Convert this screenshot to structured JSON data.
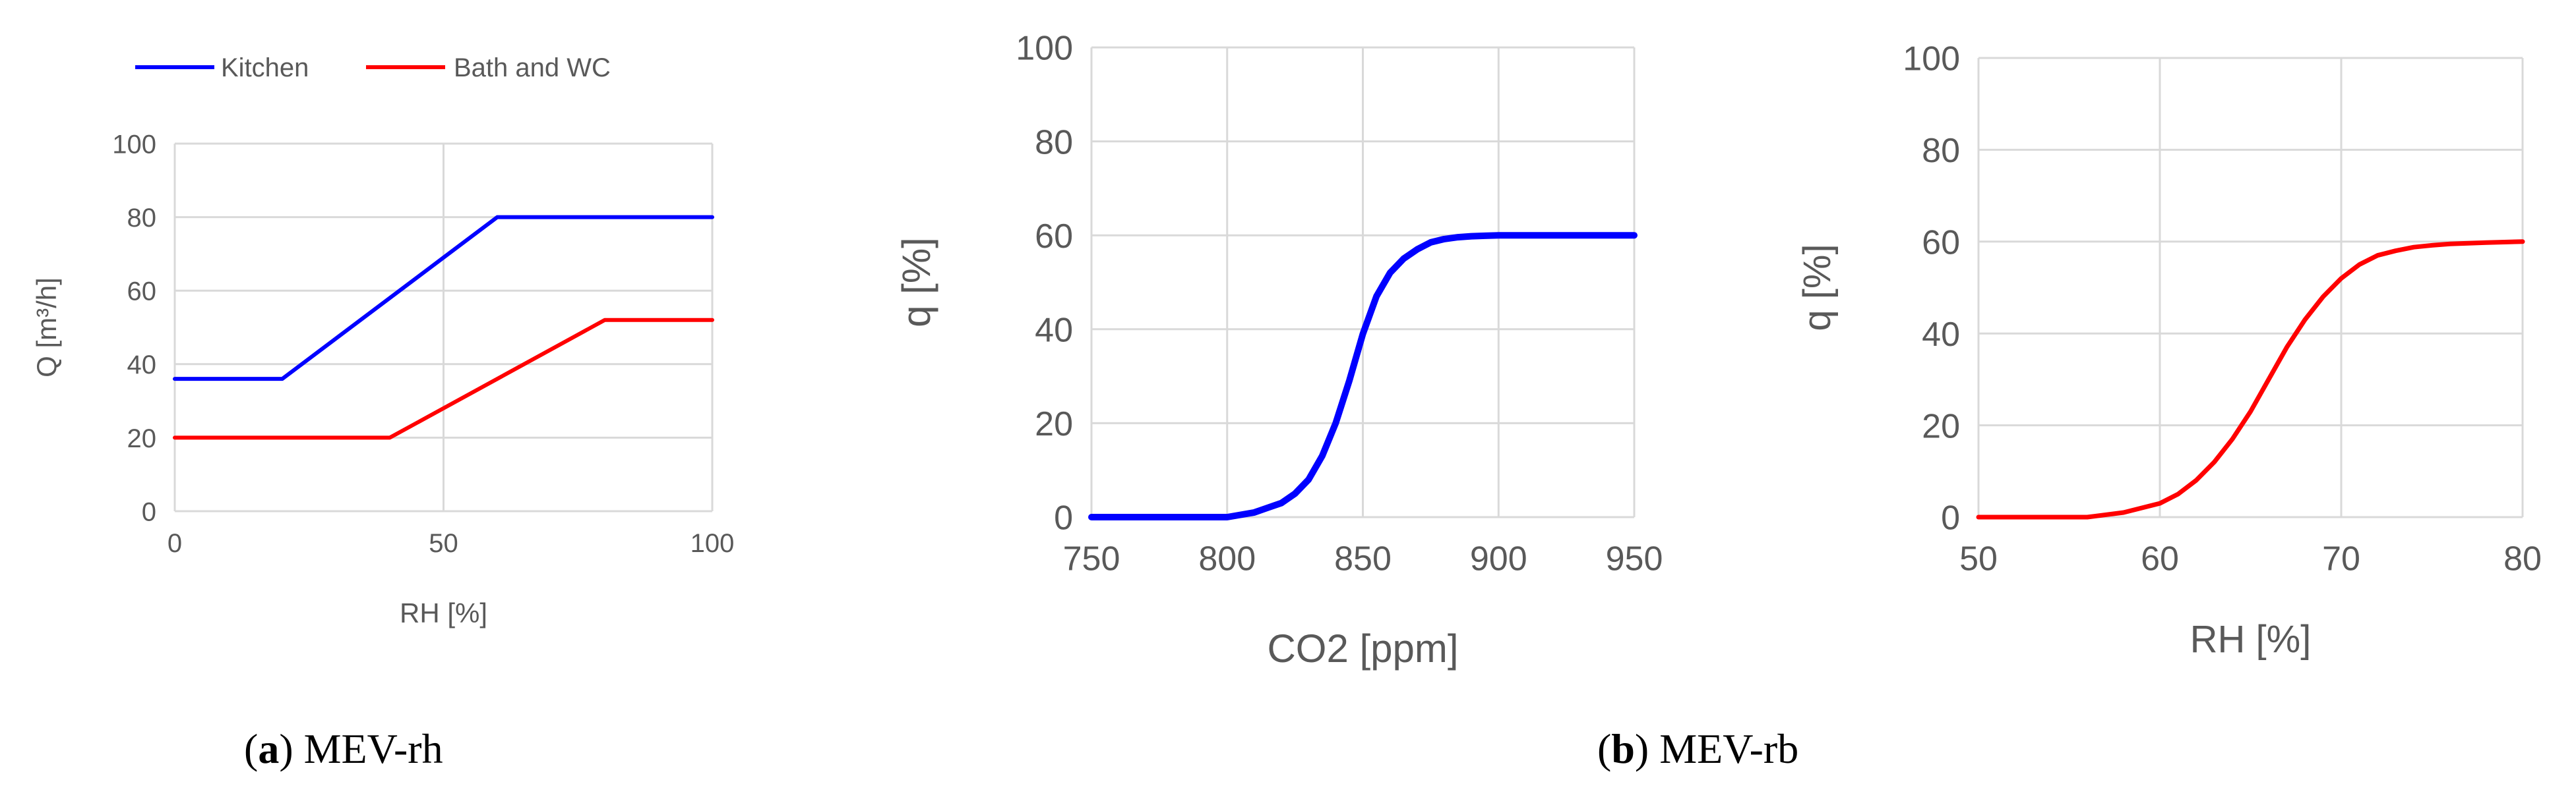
{
  "colors": {
    "kitchen": "#0000FF",
    "bath": "#FF0000",
    "grid": "#D9D9D9",
    "text": "#595959"
  },
  "chart_data": [
    {
      "type": "line",
      "xlabel": "RH [%]",
      "ylabel": "Q [m³/h]",
      "xlim": [
        0,
        100
      ],
      "ylim": [
        0,
        100
      ],
      "xticks": [
        0,
        50,
        100
      ],
      "yticks": [
        0,
        20,
        40,
        60,
        80,
        100
      ],
      "grid": true,
      "legend_position": "top",
      "series": [
        {
          "name": "Kitchen",
          "color": "#0000FF",
          "x": [
            0,
            20,
            60,
            100
          ],
          "y": [
            36,
            36,
            80,
            80
          ]
        },
        {
          "name": "Bath and WC",
          "color": "#FF0000",
          "x": [
            0,
            40,
            80,
            100
          ],
          "y": [
            20,
            20,
            52,
            52
          ]
        }
      ]
    },
    {
      "type": "line",
      "xlabel": "CO2 [ppm]",
      "ylabel": "q [%]",
      "xlim": [
        750,
        950
      ],
      "ylim": [
        0,
        100
      ],
      "xticks": [
        750,
        800,
        850,
        900,
        950
      ],
      "yticks": [
        0,
        20,
        40,
        60,
        80,
        100
      ],
      "grid": true,
      "series": [
        {
          "color": "#0000FF",
          "x": [
            750,
            800,
            810,
            815,
            820,
            825,
            830,
            835,
            840,
            845,
            850,
            855,
            860,
            865,
            870,
            875,
            880,
            885,
            890,
            895,
            900,
            910,
            950
          ],
          "y": [
            0,
            0,
            1,
            2,
            3,
            5,
            8,
            13,
            20,
            29,
            39,
            47,
            52,
            55,
            57,
            58.5,
            59.2,
            59.6,
            59.8,
            59.9,
            60,
            60,
            60
          ]
        }
      ]
    },
    {
      "type": "line",
      "xlabel": "RH [%]",
      "ylabel": "q [%]",
      "xlim": [
        50,
        80
      ],
      "ylim": [
        0,
        100
      ],
      "xticks": [
        50,
        60,
        70,
        80
      ],
      "yticks": [
        0,
        20,
        40,
        60,
        80,
        100
      ],
      "grid": true,
      "series": [
        {
          "color": "#FF0000",
          "x": [
            50,
            56,
            58,
            60,
            61,
            62,
            63,
            64,
            65,
            66,
            67,
            68,
            69,
            70,
            71,
            72,
            73,
            74,
            75,
            76,
            78,
            80
          ],
          "y": [
            0,
            0,
            1,
            3,
            5,
            8,
            12,
            17,
            23,
            30,
            37,
            43,
            48,
            52,
            55,
            57,
            58,
            58.8,
            59.2,
            59.5,
            59.8,
            60
          ]
        }
      ]
    }
  ],
  "captions": [
    {
      "label": "a",
      "text": " MEV-rh"
    },
    {
      "label": "b",
      "text": " MEV-rb"
    }
  ]
}
